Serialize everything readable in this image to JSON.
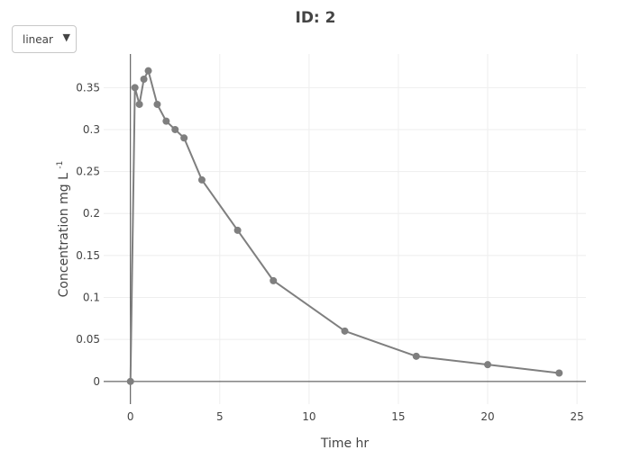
{
  "title": "ID: 2",
  "scale_selector": {
    "selected": "linear",
    "arrow_icon": "dropdown-triangle-icon"
  },
  "chart_data": {
    "type": "line",
    "title": "ID: 2",
    "xlabel": "Time hr",
    "ylabel_main": "Concentration mg L",
    "ylabel_superscript": "-1",
    "xlim": [
      -1.5,
      25.5
    ],
    "ylim": [
      -0.027,
      0.39
    ],
    "xticks": [
      0,
      5,
      10,
      15,
      20,
      25
    ],
    "xtick_labels": [
      "0",
      "5",
      "10",
      "15",
      "20",
      "25"
    ],
    "yticks": [
      0,
      0.05,
      0.1,
      0.15,
      0.2,
      0.25,
      0.3,
      0.35
    ],
    "ytick_labels": [
      "0",
      "0.05",
      "0.1",
      "0.15",
      "0.2",
      "0.25",
      "0.3",
      "0.35"
    ],
    "grid": true,
    "series": [
      {
        "color": "#7f7f7f",
        "x": [
          0,
          0.25,
          0.5,
          0.75,
          1,
          1.5,
          2,
          2.5,
          3,
          4,
          6,
          8,
          12,
          16,
          20,
          24
        ],
        "y": [
          0,
          0.35,
          0.33,
          0.36,
          0.37,
          0.33,
          0.31,
          0.3,
          0.29,
          0.24,
          0.18,
          0.12,
          0.06,
          0.03,
          0.02,
          0.01
        ]
      }
    ]
  }
}
